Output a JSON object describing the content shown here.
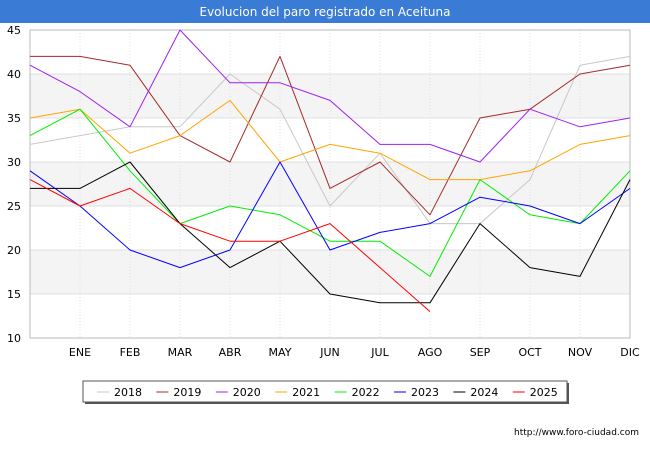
{
  "chart_data": {
    "type": "line",
    "title": "Evolucion del paro registrado en Aceituna",
    "xlabel": "",
    "ylabel": "",
    "categories": [
      "",
      "ENE",
      "FEB",
      "MAR",
      "ABR",
      "MAY",
      "JUN",
      "JUL",
      "AGO",
      "SEP",
      "OCT",
      "NOV",
      "DIC"
    ],
    "ylim": [
      10,
      45
    ],
    "yticks": [
      10,
      15,
      20,
      25,
      30,
      35,
      40,
      45
    ],
    "grid": true,
    "legend_position": "bottom",
    "series": [
      {
        "name": "2018",
        "color": "#c8c8c8",
        "values": [
          32,
          33,
          34,
          34,
          40,
          36,
          25,
          31,
          23,
          23,
          28,
          41,
          42
        ]
      },
      {
        "name": "2019",
        "color": "#a52a2a",
        "values": [
          42,
          42,
          41,
          33,
          30,
          42,
          27,
          30,
          24,
          35,
          36,
          40,
          41
        ]
      },
      {
        "name": "2020",
        "color": "#a020f0",
        "values": [
          41,
          38,
          34,
          45,
          39,
          39,
          37,
          32,
          32,
          30,
          36,
          34,
          35
        ]
      },
      {
        "name": "2021",
        "color": "#ffa500",
        "values": [
          35,
          36,
          31,
          33,
          37,
          30,
          32,
          31,
          28,
          28,
          29,
          32,
          33
        ]
      },
      {
        "name": "2022",
        "color": "#00ee00",
        "values": [
          33,
          36,
          29,
          23,
          25,
          24,
          21,
          21,
          17,
          28,
          24,
          23,
          29
        ]
      },
      {
        "name": "2023",
        "color": "#0000ff",
        "values": [
          29,
          25,
          20,
          18,
          20,
          30,
          20,
          22,
          23,
          26,
          25,
          23,
          27
        ]
      },
      {
        "name": "2024",
        "color": "#000000",
        "values": [
          27,
          27,
          30,
          23,
          18,
          21,
          15,
          14,
          14,
          23,
          18,
          17,
          28
        ]
      },
      {
        "name": "2025",
        "color": "#ff0000",
        "values": [
          28,
          25,
          27,
          23,
          21,
          21,
          23,
          18,
          13,
          null,
          null,
          null,
          null
        ]
      }
    ]
  },
  "footer": {
    "url": "http://www.foro-ciudad.com"
  }
}
